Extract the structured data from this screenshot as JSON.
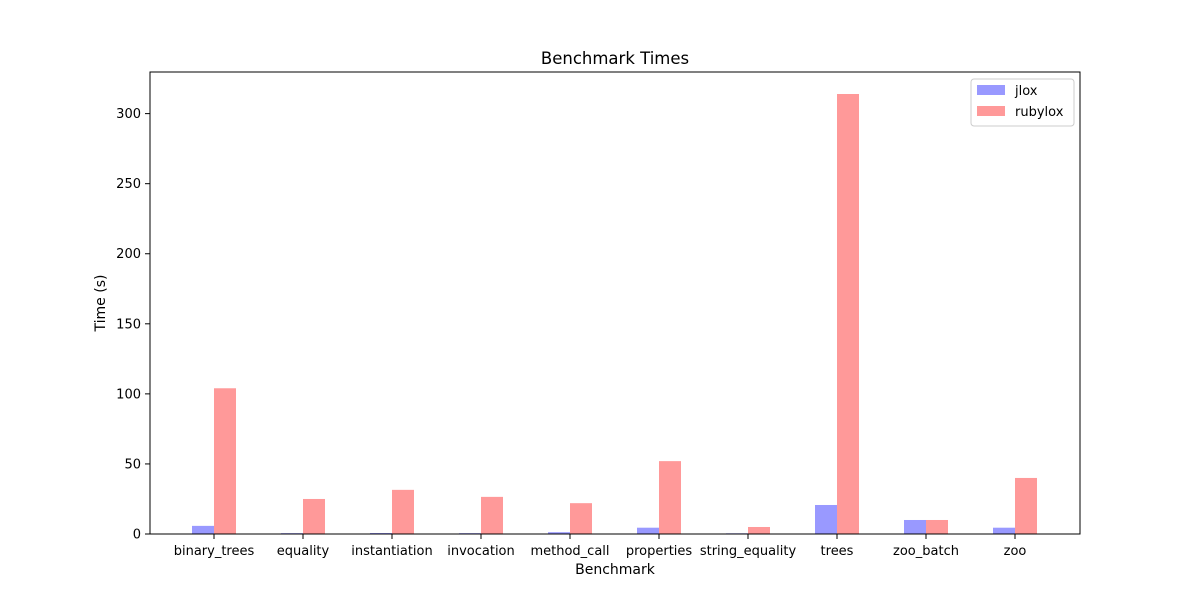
{
  "chart_data": {
    "type": "bar",
    "title": "Benchmark Times",
    "xlabel": "Benchmark",
    "ylabel": "Time (s)",
    "categories": [
      "binary_trees",
      "equality",
      "instantiation",
      "invocation",
      "method_call",
      "properties",
      "string_equality",
      "trees",
      "zoo_batch",
      "zoo"
    ],
    "series": [
      {
        "name": "jlox",
        "color": "#9999ff",
        "values": [
          5.8,
          0.6,
          0.7,
          0.6,
          1.3,
          4.5,
          0.5,
          20.7,
          10.0,
          4.5
        ]
      },
      {
        "name": "rubylox",
        "color": "#ff9999",
        "values": [
          104.0,
          25.0,
          31.5,
          26.5,
          22.0,
          52.0,
          5.0,
          314.0,
          10.0,
          40.0
        ]
      }
    ],
    "ylim": [
      0,
      329.7
    ],
    "yticks": [
      0,
      50,
      100,
      150,
      200,
      250,
      300
    ],
    "grid": false,
    "legend_position": "top-right"
  }
}
